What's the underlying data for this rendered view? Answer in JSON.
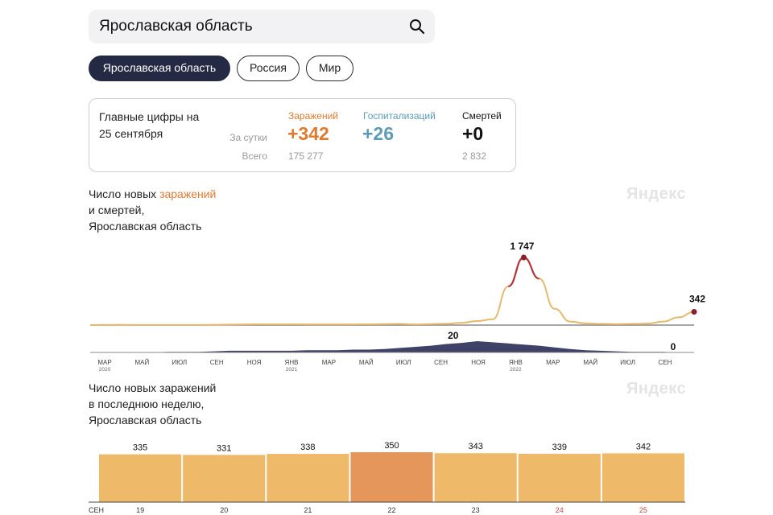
{
  "search": {
    "value": "Ярославская область"
  },
  "regions": [
    {
      "label": "Ярославская область",
      "active": true
    },
    {
      "label": "Россия",
      "active": false
    },
    {
      "label": "Мир",
      "active": false
    }
  ],
  "summary": {
    "title_line1": "Главные цифры на",
    "title_line2": "25 сентября",
    "daily_label": "За сутки",
    "total_label": "Всего",
    "infections": {
      "label": "Заражений",
      "daily": "+342",
      "total": "175 277",
      "color": "#e07a2e"
    },
    "hospitalizations": {
      "label": "Госпитализаций",
      "daily": "+26",
      "total": "",
      "color": "#5c9bb8"
    },
    "deaths": {
      "label": "Смертей",
      "daily": "+0",
      "total": "2 832",
      "color": "#111111"
    }
  },
  "chart1": {
    "title_part1": "Число новых ",
    "title_highlight": "заражений",
    "title_line2": "и смертей,",
    "title_line3": "Ярославская область",
    "watermark": "Яндекс"
  },
  "chart2": {
    "title_line1": "Число новых заражений",
    "title_line2": "в последнюю неделю,",
    "title_line3": "Ярославская область",
    "watermark": "Яндекс"
  },
  "chart_data": [
    {
      "type": "line",
      "series": [
        {
          "values": [
            2,
            5,
            8,
            5,
            4,
            6,
            6,
            5,
            7,
            14,
            18,
            22,
            20,
            20,
            19,
            18,
            17,
            19,
            20,
            25,
            30,
            18,
            25,
            35,
            60,
            105,
            150,
            1000,
            1747,
            1200,
            420,
            90,
            45,
            30,
            25,
            30,
            40,
            90,
            200,
            342
          ],
          "color": "#e8b96b"
        },
        {
          "values": [
            0,
            0,
            0,
            0,
            0,
            1,
            1,
            1,
            2,
            3,
            3,
            3,
            3,
            3,
            4,
            4,
            4,
            5,
            5,
            6,
            8,
            10,
            12,
            15,
            17,
            20,
            18,
            16,
            14,
            12,
            9,
            6,
            4,
            3,
            2,
            1,
            1,
            1,
            0,
            0
          ],
          "color": "#3d4266"
        }
      ],
      "annotations": [
        {
          "text": "1 747",
          "series": 0
        },
        {
          "text": "342",
          "series": 0
        },
        {
          "text": "20",
          "series": 1
        },
        {
          "text": "0",
          "series": 1
        }
      ],
      "x_ticks": [
        {
          "label": "МАР",
          "sub": "2020"
        },
        {
          "label": "МАЙ",
          "sub": ""
        },
        {
          "label": "ИЮЛ",
          "sub": ""
        },
        {
          "label": "СЕН",
          "sub": ""
        },
        {
          "label": "НОЯ",
          "sub": ""
        },
        {
          "label": "ЯНВ",
          "sub": "2021"
        },
        {
          "label": "МАР",
          "sub": ""
        },
        {
          "label": "МАЙ",
          "sub": ""
        },
        {
          "label": "ИЮЛ",
          "sub": ""
        },
        {
          "label": "СЕН",
          "sub": ""
        },
        {
          "label": "НОЯ",
          "sub": ""
        },
        {
          "label": "ЯНВ",
          "sub": "2022"
        },
        {
          "label": "МАР",
          "sub": ""
        },
        {
          "label": "МАЙ",
          "sub": ""
        },
        {
          "label": "ИЮЛ",
          "sub": ""
        },
        {
          "label": "СЕН",
          "sub": ""
        }
      ]
    },
    {
      "type": "bar",
      "categories": [
        "19",
        "20",
        "21",
        "22",
        "23",
        "24",
        "25"
      ],
      "month_label": "СЕН",
      "values": [
        335,
        331,
        338,
        350,
        343,
        339,
        342
      ],
      "bar_color": "#efb96a",
      "highlight_color": "#e5965b",
      "highlight_index": 3,
      "weekend_label_color": "#d04040",
      "weekend_indices": [
        5,
        6
      ]
    }
  ]
}
